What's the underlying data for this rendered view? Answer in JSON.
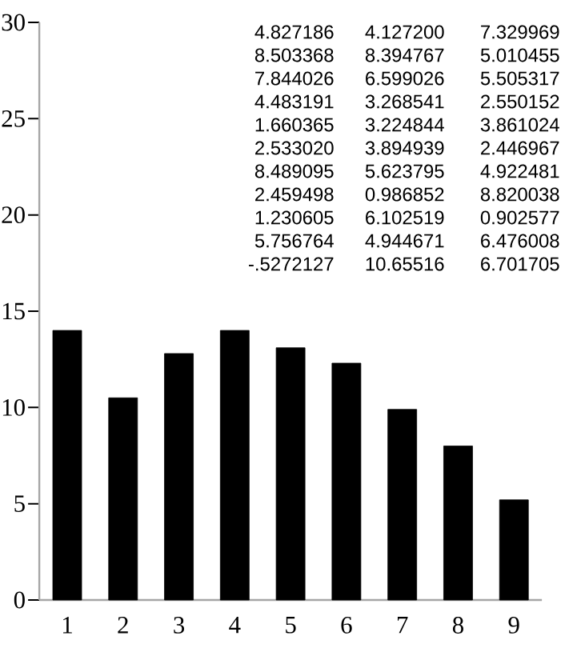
{
  "chart_data": {
    "type": "bar",
    "categories": [
      "1",
      "2",
      "3",
      "4",
      "5",
      "6",
      "7",
      "8",
      "9"
    ],
    "values": [
      14.0,
      10.5,
      12.8,
      14.0,
      13.1,
      12.3,
      9.9,
      8.0,
      5.2
    ],
    "color": "#000000",
    "ylim": [
      0,
      30
    ],
    "yticks": [
      0,
      5,
      10,
      15,
      20,
      25,
      30
    ],
    "annotations": [
      "4.827186",
      "4.127200",
      "7.329969",
      "8.503368",
      "8.394767",
      "5.010455",
      "7.844026",
      "6.599026",
      "5.505317",
      "4.483191",
      "3.268541",
      "2.550152",
      "1.660365",
      "3.224844",
      "3.861024",
      "2.533020",
      "3.894939",
      "2.446967",
      "8.489095",
      "5.623795",
      "4.922481",
      "2.459498",
      "0.986852",
      "8.820038",
      "1.230605",
      "6.102519",
      "0.902577",
      "5.756764",
      "4.944671",
      "6.476008",
      "-.5272127",
      "10.65516",
      "6.701705"
    ]
  }
}
